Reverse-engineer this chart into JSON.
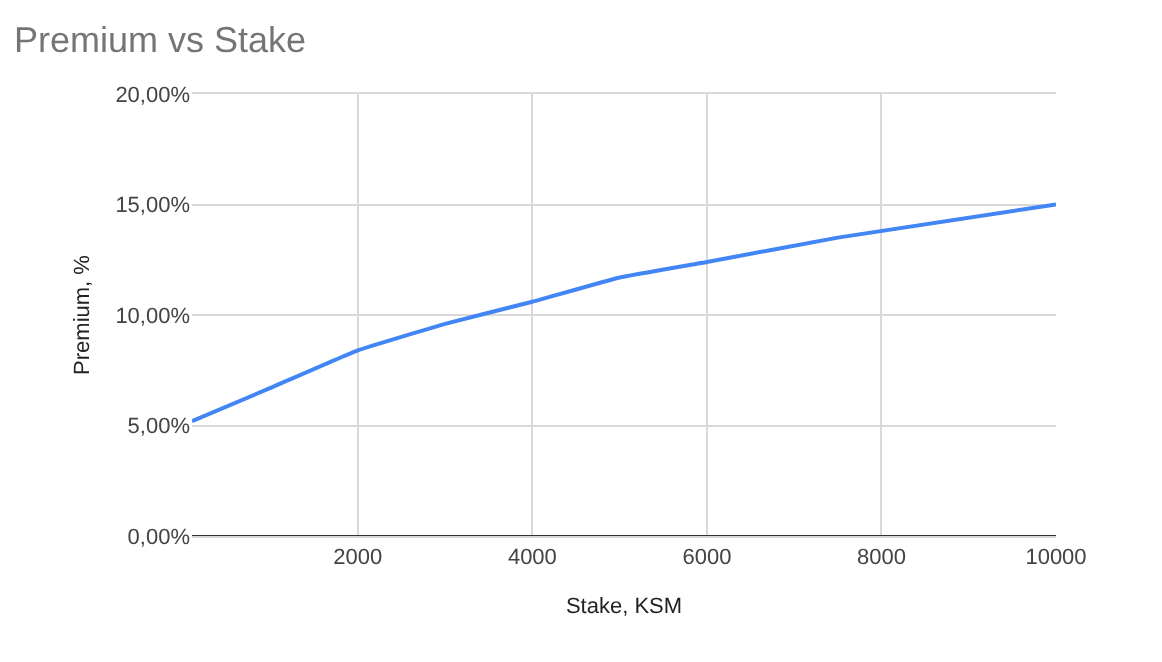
{
  "chart_data": {
    "type": "line",
    "title": "Premium vs Stake",
    "xlabel": "Stake, KSM",
    "ylabel": "Premium, %",
    "x": [
      100,
      1000,
      2000,
      3000,
      4000,
      5000,
      6000,
      7500,
      10000
    ],
    "series": [
      {
        "color": "#4285f4",
        "values": [
          5.2,
          6.7,
          8.4,
          9.6,
          10.6,
          11.7,
          12.4,
          13.5,
          15.0
        ]
      }
    ],
    "xlim": [
      100,
      10000
    ],
    "xticks": [
      2000,
      4000,
      6000,
      8000,
      10000
    ],
    "ylim": [
      0,
      20
    ],
    "yticks": [
      {
        "value": 0,
        "label": "0,00%"
      },
      {
        "value": 5,
        "label": "5,00%"
      },
      {
        "value": 10,
        "label": "10,00%"
      },
      {
        "value": 15,
        "label": "15,00%"
      },
      {
        "value": 20,
        "label": "20,00%"
      }
    ],
    "grid": true,
    "legend": false,
    "marker": "none",
    "line_style": "solid"
  }
}
